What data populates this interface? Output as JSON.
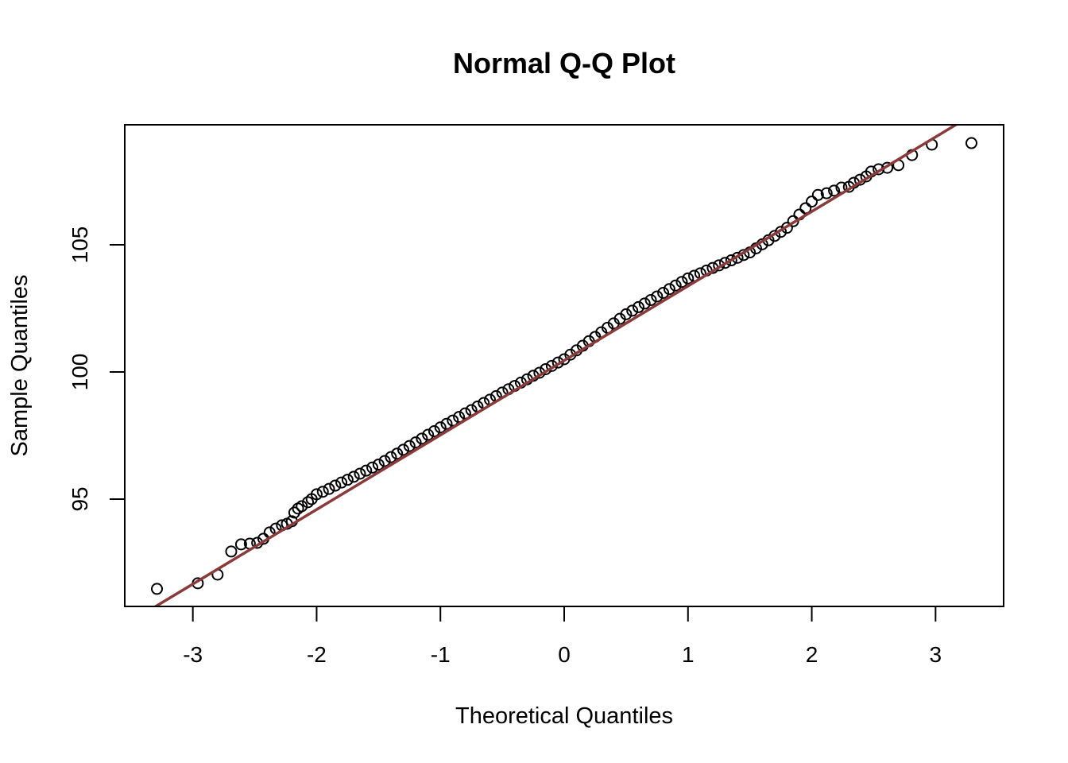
{
  "chart_data": {
    "type": "scatter",
    "title": "Normal Q-Q Plot",
    "xlabel": "Theoretical Quantiles",
    "ylabel": "Sample Quantiles",
    "xlim": [
      -3.55,
      3.55
    ],
    "ylim": [
      90.78,
      109.72
    ],
    "x_ticks": [
      -3,
      -2,
      -1,
      0,
      1,
      2,
      3
    ],
    "x_tick_labels": [
      "-3",
      "-2",
      "-1",
      "0",
      "1",
      "2",
      "3"
    ],
    "y_ticks": [
      95,
      100,
      105
    ],
    "y_tick_labels": [
      "95",
      "100",
      "105"
    ],
    "grid": false,
    "legend": "none",
    "marker": "open-circle",
    "point_color": "#000000",
    "line_color": "#8B3A3A",
    "reference_line": {
      "intercept": 100.45,
      "slope": 2.93
    },
    "points": {
      "x": [
        -3.29,
        -2.96,
        -2.8,
        -2.69,
        -2.61,
        -2.54,
        -2.48,
        -2.43,
        -2.38,
        -2.33,
        -2.28,
        -2.24,
        -2.2,
        -2.18,
        -2.15,
        -2.12,
        -2.07,
        -2.04,
        -2.0,
        -1.95,
        -1.9,
        -1.85,
        -1.8,
        -1.75,
        -1.7,
        -1.65,
        -1.6,
        -1.55,
        -1.5,
        -1.45,
        -1.4,
        -1.35,
        -1.3,
        -1.25,
        -1.2,
        -1.15,
        -1.1,
        -1.05,
        -1.0,
        -0.95,
        -0.9,
        -0.85,
        -0.8,
        -0.75,
        -0.7,
        -0.65,
        -0.6,
        -0.55,
        -0.5,
        -0.45,
        -0.4,
        -0.35,
        -0.3,
        -0.25,
        -0.2,
        -0.15,
        -0.1,
        -0.05,
        0.0,
        0.05,
        0.1,
        0.15,
        0.2,
        0.25,
        0.3,
        0.35,
        0.4,
        0.45,
        0.5,
        0.55,
        0.6,
        0.65,
        0.7,
        0.75,
        0.8,
        0.85,
        0.9,
        0.95,
        1.0,
        1.05,
        1.1,
        1.15,
        1.2,
        1.25,
        1.3,
        1.35,
        1.4,
        1.45,
        1.5,
        1.55,
        1.6,
        1.65,
        1.7,
        1.75,
        1.8,
        1.85,
        1.9,
        1.95,
        2.0,
        2.05,
        2.12,
        2.18,
        2.24,
        2.3,
        2.34,
        2.39,
        2.44,
        2.48,
        2.54,
        2.61,
        2.7,
        2.81,
        2.97,
        3.29
      ],
      "y": [
        91.47,
        91.69,
        92.03,
        92.94,
        93.22,
        93.25,
        93.28,
        93.44,
        93.69,
        93.84,
        93.97,
        94.03,
        94.13,
        94.47,
        94.63,
        94.72,
        94.88,
        95.0,
        95.19,
        95.29,
        95.4,
        95.53,
        95.65,
        95.76,
        95.88,
        96.0,
        96.12,
        96.24,
        96.36,
        96.5,
        96.65,
        96.79,
        96.94,
        97.09,
        97.23,
        97.38,
        97.53,
        97.67,
        97.82,
        97.96,
        98.09,
        98.23,
        98.37,
        98.5,
        98.64,
        98.78,
        98.91,
        99.05,
        99.19,
        99.32,
        99.45,
        99.58,
        99.71,
        99.85,
        99.97,
        100.11,
        100.24,
        100.37,
        100.5,
        100.68,
        100.85,
        101.03,
        101.21,
        101.38,
        101.56,
        101.74,
        101.91,
        102.09,
        102.27,
        102.41,
        102.55,
        102.69,
        102.83,
        102.97,
        103.11,
        103.26,
        103.4,
        103.54,
        103.68,
        103.78,
        103.88,
        103.99,
        104.09,
        104.19,
        104.29,
        104.39,
        104.49,
        104.6,
        104.7,
        104.86,
        105.02,
        105.18,
        105.35,
        105.51,
        105.67,
        105.93,
        106.19,
        106.44,
        106.7,
        106.96,
        107.03,
        107.13,
        107.25,
        107.28,
        107.44,
        107.56,
        107.69,
        107.88,
        107.97,
        108.03,
        108.13,
        108.53,
        108.94,
        109.0
      ]
    }
  }
}
